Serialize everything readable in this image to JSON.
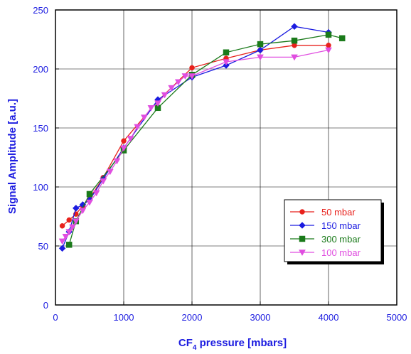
{
  "chart_data": {
    "type": "line",
    "xlabel_main": "CF",
    "xlabel_sub": "4",
    "xlabel_rest": " pressure [mbars]",
    "ylabel": "Signal Amplitude [a.u.]",
    "xlim": [
      0,
      5000
    ],
    "ylim": [
      0,
      250
    ],
    "x_ticks": [
      0,
      1000,
      2000,
      3000,
      4000,
      5000
    ],
    "y_ticks": [
      0,
      50,
      100,
      150,
      200,
      250
    ],
    "grid": true,
    "legend_position": "bottom-right",
    "series": [
      {
        "name": "50 mbar",
        "color": "#e8211c",
        "marker": "circle",
        "x": [
          100,
          200,
          300,
          400,
          500,
          700,
          1000,
          1500,
          2000,
          2500,
          3000,
          3500,
          4000
        ],
        "y": [
          67,
          72,
          77,
          84,
          90,
          108,
          139,
          173,
          201,
          209,
          216,
          220,
          220
        ]
      },
      {
        "name": "150 mbar",
        "color": "#1c1ce0",
        "marker": "diamond",
        "x": [
          100,
          200,
          300,
          400,
          500,
          700,
          1000,
          1500,
          2000,
          2500,
          3000,
          3500,
          4000
        ],
        "y": [
          48,
          62,
          82,
          85,
          89,
          107,
          133,
          174,
          193,
          203,
          216,
          236,
          231
        ]
      },
      {
        "name": "300 mbar",
        "color": "#1a7a1a",
        "marker": "square",
        "x": [
          200,
          300,
          500,
          1000,
          1500,
          2000,
          2500,
          3000,
          3500,
          4000,
          4200
        ],
        "y": [
          51,
          71,
          94,
          131,
          167,
          195,
          214,
          221,
          224,
          229,
          226
        ]
      },
      {
        "name": "100 mbar",
        "color": "#e04ee0",
        "marker": "triangle-down",
        "x": [
          100,
          150,
          200,
          250,
          300,
          400,
          500,
          600,
          700,
          800,
          900,
          1000,
          1100,
          1200,
          1300,
          1400,
          1500,
          1600,
          1700,
          1800,
          1900,
          2000,
          2500,
          3000,
          3500,
          4000
        ],
        "y": [
          54,
          58,
          62,
          66,
          71,
          80,
          87,
          95,
          105,
          113,
          122,
          133,
          141,
          151,
          159,
          167,
          171,
          178,
          184,
          189,
          194,
          194,
          206,
          210,
          210,
          216
        ]
      }
    ]
  }
}
